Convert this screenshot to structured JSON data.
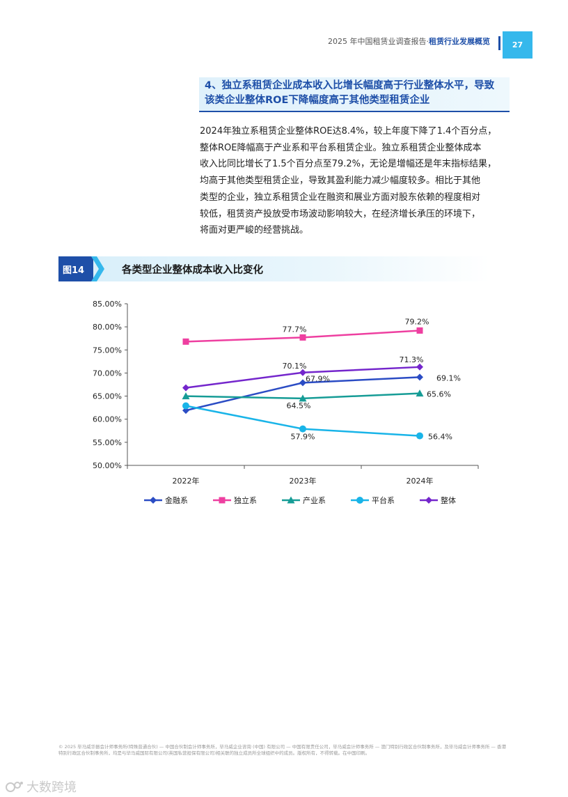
{
  "header": {
    "report_title": "2025 年中国租赁业调查报告·",
    "section_name": "租赁行业发展概览",
    "page_number": "27"
  },
  "section": {
    "title_line1": "4、独立系租赁企业成本收入比增长幅度高于行业整体水平，导致",
    "title_line2": "该类企业整体ROE下降幅度高于其他类型租赁企业"
  },
  "body": {
    "lines": [
      "2024年独立系租赁企业整体ROE达8.4%，较上年度下降了1.4个百分点，",
      "整体ROE降幅高于产业系和平台系租赁企业。独立系租赁企业整体成本",
      "收入比同比增长了1.5个百分点至79.2%，无论是增幅还是年末指标结果，",
      "均高于其他类型租赁企业，导致其盈利能力减少幅度较多。相比于其他",
      "类型的企业，独立系租赁企业在融资和展业方面对股东依赖的程度相对",
      "较低，租赁资产投放受市场波动影响较大，在经济增长承压的环境下，",
      "将面对更严峻的经营挑战。"
    ]
  },
  "figure": {
    "label": "图14",
    "title": "各类型企业整体成本收入比变化"
  },
  "chart_data": {
    "type": "line",
    "title": "",
    "xlabel": "",
    "ylabel": "",
    "categories": [
      "2022年",
      "2023年",
      "2024年"
    ],
    "ylim": [
      50,
      85
    ],
    "yticks": [
      "50.00%",
      "55.00%",
      "60.00%",
      "65.00%",
      "70.00%",
      "75.00%",
      "80.00%",
      "85.00%"
    ],
    "grid": false,
    "legend_position": "bottom",
    "series": [
      {
        "name": "金融系",
        "values": [
          61.9,
          67.9,
          69.1
        ],
        "labels": [
          "",
          "67.9%",
          "69.1%"
        ],
        "color": "#2b4cc4",
        "marker": "diamond"
      },
      {
        "name": "独立系",
        "values": [
          76.8,
          77.7,
          79.2
        ],
        "labels": [
          "",
          "77.7%",
          "79.2%"
        ],
        "color": "#ee3fa0",
        "marker": "square"
      },
      {
        "name": "产业系",
        "values": [
          65.0,
          64.5,
          65.6
        ],
        "labels": [
          "",
          "64.5%",
          "65.6%"
        ],
        "color": "#169c96",
        "marker": "triangle"
      },
      {
        "name": "平台系",
        "values": [
          62.9,
          57.9,
          56.4
        ],
        "labels": [
          "",
          "57.9%",
          "56.4%"
        ],
        "color": "#19b4e8",
        "marker": "circle"
      },
      {
        "name": "整体",
        "values": [
          66.8,
          70.1,
          71.3
        ],
        "labels": [
          "",
          "70.1%",
          "71.3%"
        ],
        "color": "#7426cc",
        "marker": "diamond"
      }
    ]
  },
  "footer": {
    "text": "© 2025 毕马威华振会计师事务所(特殊普通合伙) — 中国合伙制会计师事务所，毕马威企业咨询 (中国) 有限公司 — 中国有限责任公司，毕马威会计师事务所 — 澳门特别行政区合伙制事务所，及毕马威会计师事务所 — 香港特别行政区合伙制事务所，均是与毕马威国际有限公司(英国私营担保有限公司)相关联的独立成员所全球组织中的成员。版权所有，不得转载。在中国印刷。"
  },
  "watermark": {
    "text": "大数跨境"
  }
}
